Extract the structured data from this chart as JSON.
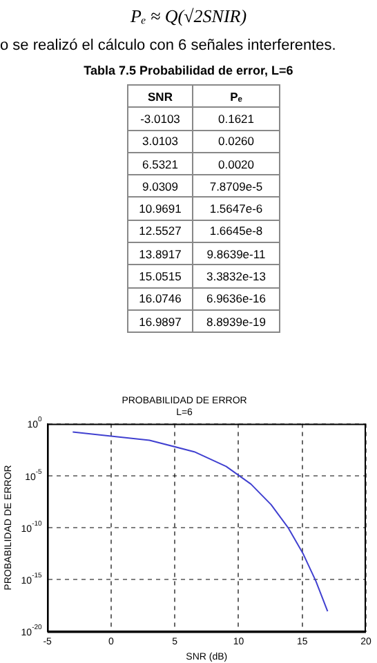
{
  "chart_data": [
    {
      "type": "other",
      "annotations": [
        "Pₑ ≈ Q(√2SNIR)",
        "o se realizó el cálculo con 6 señales interferentes.",
        "Tabla 7.5 Probabilidad de error, L=6",
        "SNR",
        "Pₑ",
        "-3.0103",
        "0.1621",
        "3.0103",
        "0.0260",
        "6.5321",
        "0.0020",
        "9.0309",
        "7.8709e-5",
        "10.9691",
        "1.5647e-6",
        "12.5527",
        "1.6645e-8",
        "13.8917",
        "9.8639e-11",
        "15.0515",
        "3.3832e-13",
        "16.0746",
        "6.9636e-16",
        "16.9897",
        "8.8939e-19"
      ]
    },
    {
      "type": "line",
      "title": "PROBABILIDAD DE ERROR",
      "subtitle": "L=6",
      "xlabel": "SNR (dB)",
      "ylabel": "PROBABILIDAD DE ERROR",
      "x": [
        -3.0103,
        3.0103,
        6.5321,
        9.0309,
        10.9691,
        12.5527,
        13.8917,
        15.0515,
        16.0746,
        16.9897
      ],
      "series": [
        {
          "color": "#4040d0",
          "values": [
            0.1621,
            0.026,
            0.002,
            7.8709e-05,
            1.5647e-06,
            1.6645e-08,
            9.8639e-11,
            3.3832e-13,
            6.9636e-16,
            8.8939e-19
          ]
        }
      ],
      "xlim": [
        -5,
        20
      ],
      "xticks": [
        -5,
        0,
        5,
        10,
        15,
        20
      ],
      "ylim": [
        1e-20,
        1
      ],
      "yticks": [
        {
          "value": 1,
          "label": "10$^{0}$"
        },
        {
          "value": 1e-05,
          "label": "10$^{-5}$"
        },
        {
          "value": 1e-10,
          "label": "10$^{-10}$"
        },
        {
          "value": 1e-15,
          "label": "10$^{-15}$"
        },
        {
          "value": 1e-20,
          "label": "10$^{-20}$"
        }
      ],
      "log": "y",
      "grid": true,
      "legend": false,
      "marker": "none",
      "line_style": "solid"
    }
  ]
}
